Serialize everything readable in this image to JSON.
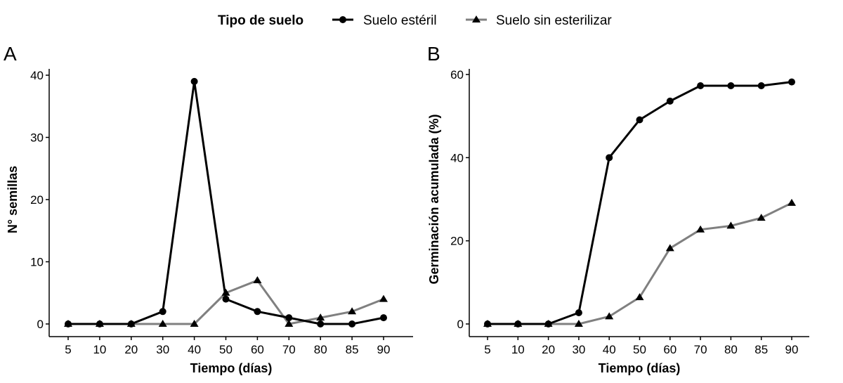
{
  "legend": {
    "title": "Tipo de suelo",
    "position": "top",
    "items": [
      {
        "label": "Suelo estéril",
        "color": "#000000",
        "marker": "circle"
      },
      {
        "label": "Suelo sin esterilizar",
        "color": "#808080",
        "marker": "triangle"
      }
    ]
  },
  "chart_data": [
    {
      "panel": "A",
      "type": "line",
      "xlabel": "Tiempo (días)",
      "ylabel": "N° semillas",
      "categories": [
        "5",
        "10",
        "20",
        "30",
        "40",
        "50",
        "60",
        "70",
        "80",
        "85",
        "90"
      ],
      "ylim": [
        -2,
        41
      ],
      "yticks": [
        0,
        10,
        20,
        30,
        40
      ],
      "grid": false,
      "series": [
        {
          "name": "Suelo estéril",
          "color": "#000000",
          "values": [
            0,
            0,
            0,
            2,
            39,
            4,
            2,
            1,
            0,
            0,
            1
          ]
        },
        {
          "name": "Suelo sin esterilizar",
          "color": "#808080",
          "values": [
            0,
            0,
            0,
            0,
            0,
            5,
            7,
            0,
            1,
            2,
            4
          ]
        }
      ]
    },
    {
      "panel": "B",
      "type": "line",
      "xlabel": "Tiempo (días)",
      "ylabel": "Germinación acumulada (%)",
      "categories": [
        "5",
        "10",
        "20",
        "30",
        "40",
        "50",
        "60",
        "70",
        "80",
        "85",
        "90"
      ],
      "ylim": [
        -3,
        61
      ],
      "yticks": [
        0,
        20,
        40,
        60
      ],
      "grid": false,
      "series": [
        {
          "name": "Suelo estéril",
          "color": "#000000",
          "values": [
            0,
            0,
            0,
            2.7,
            40,
            49.1,
            53.6,
            57.3,
            57.3,
            57.3,
            58.2
          ]
        },
        {
          "name": "Suelo sin esterilizar",
          "color": "#808080",
          "values": [
            0,
            0,
            0,
            0,
            1.8,
            6.4,
            18.2,
            22.7,
            23.6,
            25.5,
            29.1
          ]
        }
      ]
    }
  ]
}
